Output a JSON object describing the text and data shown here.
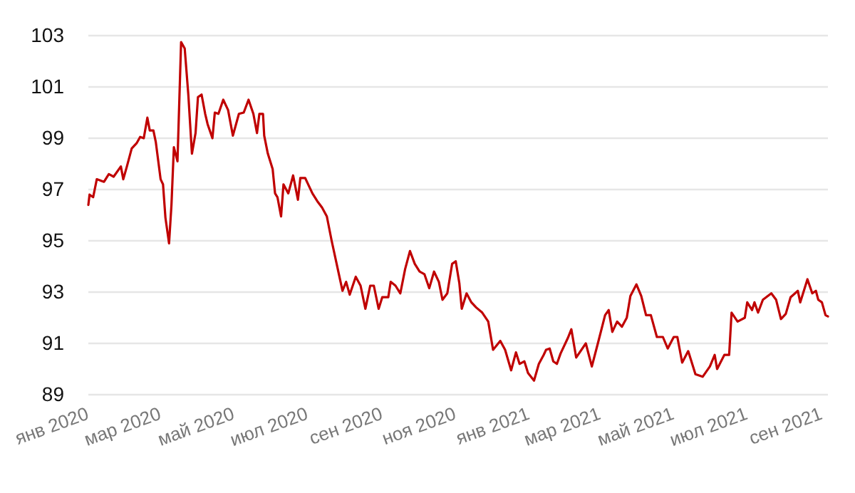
{
  "chart_data": {
    "type": "line",
    "x": [
      "2020-01-01",
      "2020-01-02",
      "2020-01-05",
      "2020-01-08",
      "2020-01-14",
      "2020-01-18",
      "2020-01-22",
      "2020-01-28",
      "2020-01-30",
      "2020-02-02",
      "2020-02-06",
      "2020-02-10",
      "2020-02-13",
      "2020-02-16",
      "2020-02-19",
      "2020-02-21",
      "2020-02-24",
      "2020-02-26",
      "2020-03-01",
      "2020-03-03",
      "2020-03-05",
      "2020-03-08",
      "2020-03-10",
      "2020-03-12",
      "2020-03-15",
      "2020-03-18",
      "2020-03-21",
      "2020-03-24",
      "2020-03-27",
      "2020-03-30",
      "2020-04-01",
      "2020-04-04",
      "2020-04-07",
      "2020-04-09",
      "2020-04-13",
      "2020-04-15",
      "2020-04-18",
      "2020-04-22",
      "2020-04-26",
      "2020-04-30",
      "2020-05-05",
      "2020-05-09",
      "2020-05-13",
      "2020-05-17",
      "2020-05-20",
      "2020-05-22",
      "2020-05-25",
      "2020-05-26",
      "2020-05-29",
      "2020-06-02",
      "2020-06-04",
      "2020-06-06",
      "2020-06-09",
      "2020-06-11",
      "2020-06-15",
      "2020-06-19",
      "2020-06-23",
      "2020-06-25",
      "2020-06-29",
      "2020-07-05",
      "2020-07-09",
      "2020-07-13",
      "2020-07-17",
      "2020-07-21",
      "2020-07-27",
      "2020-07-30",
      "2020-08-02",
      "2020-08-05",
      "2020-08-10",
      "2020-08-14",
      "2020-08-18",
      "2020-08-22",
      "2020-08-25",
      "2020-08-29",
      "2020-09-01",
      "2020-09-06",
      "2020-09-08",
      "2020-09-12",
      "2020-09-16",
      "2020-09-20",
      "2020-09-24",
      "2020-09-28",
      "2020-10-02",
      "2020-10-06",
      "2020-10-10",
      "2020-10-14",
      "2020-10-18",
      "2020-10-21",
      "2020-10-25",
      "2020-10-29",
      "2020-11-01",
      "2020-11-04",
      "2020-11-06",
      "2020-11-10",
      "2020-11-14",
      "2020-11-18",
      "2020-11-23",
      "2020-11-28",
      "2020-12-02",
      "2020-12-08",
      "2020-12-12",
      "2020-12-17",
      "2020-12-21",
      "2020-12-24",
      "2020-12-28",
      "2020-12-31",
      "2021-01-05",
      "2021-01-09",
      "2021-01-13",
      "2021-01-15",
      "2021-01-18",
      "2021-01-21",
      "2021-01-24",
      "2021-01-27",
      "2021-02-02",
      "2021-02-05",
      "2021-02-09",
      "2021-02-17",
      "2021-02-22",
      "2021-02-27",
      "2021-03-05",
      "2021-03-08",
      "2021-03-11",
      "2021-03-15",
      "2021-03-19",
      "2021-03-23",
      "2021-03-26",
      "2021-03-31",
      "2021-04-04",
      "2021-04-08",
      "2021-04-12",
      "2021-04-17",
      "2021-04-22",
      "2021-04-26",
      "2021-05-01",
      "2021-05-04",
      "2021-05-08",
      "2021-05-13",
      "2021-05-19",
      "2021-05-25",
      "2021-05-31",
      "2021-06-04",
      "2021-06-06",
      "2021-06-12",
      "2021-06-16",
      "2021-06-18",
      "2021-06-23",
      "2021-06-29",
      "2021-07-01",
      "2021-07-05",
      "2021-07-07",
      "2021-07-10",
      "2021-07-14",
      "2021-07-21",
      "2021-07-25",
      "2021-07-29",
      "2021-08-02",
      "2021-08-06",
      "2021-08-12",
      "2021-08-14",
      "2021-08-20",
      "2021-08-24",
      "2021-08-27",
      "2021-08-29",
      "2021-09-01",
      "2021-09-04",
      "2021-09-06"
    ],
    "series": [
      {
        "color": "#c00000",
        "values": [
          96.4,
          96.8,
          96.7,
          97.4,
          97.3,
          97.6,
          97.5,
          97.9,
          97.4,
          97.9,
          98.6,
          98.8,
          99.05,
          99.0,
          99.8,
          99.3,
          99.3,
          98.85,
          97.4,
          97.2,
          95.9,
          94.9,
          96.4,
          98.65,
          98.1,
          102.75,
          102.5,
          100.7,
          98.4,
          99.2,
          100.6,
          100.7,
          99.95,
          99.55,
          99.0,
          100.0,
          99.95,
          100.5,
          100.1,
          99.1,
          99.95,
          100.0,
          100.5,
          99.95,
          99.2,
          99.95,
          99.95,
          99.1,
          98.4,
          97.8,
          96.85,
          96.7,
          95.95,
          97.2,
          96.85,
          97.55,
          96.6,
          97.45,
          97.45,
          96.85,
          96.55,
          96.3,
          95.95,
          95.0,
          93.7,
          93.05,
          93.4,
          92.9,
          93.6,
          93.25,
          92.35,
          93.25,
          93.25,
          92.35,
          92.8,
          92.8,
          93.4,
          93.25,
          92.95,
          93.9,
          94.6,
          94.1,
          93.8,
          93.7,
          93.15,
          93.8,
          93.4,
          92.7,
          92.95,
          94.1,
          94.2,
          93.35,
          92.35,
          92.95,
          92.6,
          92.4,
          92.2,
          91.85,
          90.75,
          91.1,
          90.75,
          89.95,
          90.65,
          90.2,
          90.3,
          89.85,
          89.55,
          90.2,
          90.55,
          90.75,
          90.8,
          90.3,
          90.2,
          90.6,
          91.2,
          91.55,
          90.45,
          91.0,
          90.1,
          91.0,
          92.1,
          92.3,
          91.45,
          91.85,
          91.65,
          92.0,
          92.85,
          93.3,
          92.85,
          92.1,
          92.1,
          91.25,
          91.25,
          90.8,
          91.25,
          91.25,
          90.25,
          90.7,
          89.8,
          89.7,
          90.1,
          90.55,
          90.0,
          90.55,
          90.55,
          92.2,
          91.85,
          92.0,
          92.6,
          92.3,
          92.6,
          92.2,
          92.7,
          92.95,
          92.7,
          91.95,
          92.15,
          92.8,
          93.05,
          92.6,
          93.5,
          92.95,
          93.05,
          92.7,
          92.6,
          92.1,
          92.05
        ]
      }
    ],
    "xlim": [
      "2020-01-01",
      "2021-09-06"
    ],
    "xticks": [
      {
        "value": "2020-01-01",
        "label": "янв 2020"
      },
      {
        "value": "2020-03-01",
        "label": "мар 2020"
      },
      {
        "value": "2020-05-01",
        "label": "май 2020"
      },
      {
        "value": "2020-07-01",
        "label": "июл 2020"
      },
      {
        "value": "2020-09-01",
        "label": "сен 2020"
      },
      {
        "value": "2020-11-01",
        "label": "ноя 2020"
      },
      {
        "value": "2021-01-01",
        "label": "янв 2021"
      },
      {
        "value": "2021-03-01",
        "label": "мар 2021"
      },
      {
        "value": "2021-05-01",
        "label": "май 2021"
      },
      {
        "value": "2021-07-01",
        "label": "июл 2021"
      },
      {
        "value": "2021-09-01",
        "label": "сен 2021"
      }
    ],
    "ylim": [
      89,
      103
    ],
    "yticks": [
      89,
      91,
      93,
      95,
      97,
      99,
      101,
      103
    ],
    "grid": "y",
    "line_style": "solid",
    "marker": "none"
  }
}
